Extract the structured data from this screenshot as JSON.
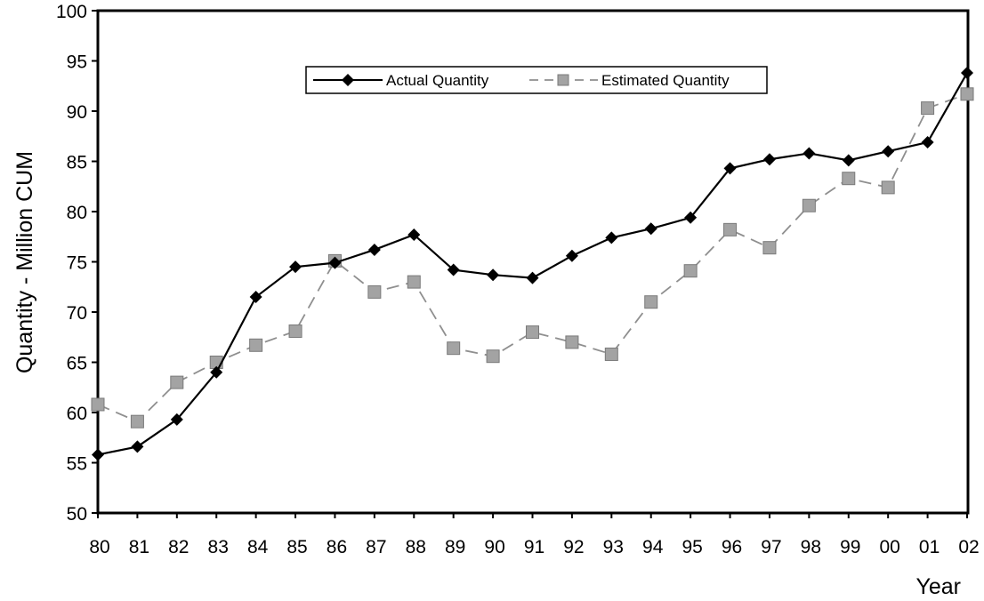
{
  "chart_data": {
    "type": "line",
    "title": "",
    "xlabel": "Year",
    "ylabel": "Quantity - Million CUM",
    "categories": [
      "80",
      "81",
      "82",
      "83",
      "84",
      "85",
      "86",
      "87",
      "88",
      "89",
      "90",
      "91",
      "92",
      "93",
      "94",
      "95",
      "96",
      "97",
      "98",
      "99",
      "00",
      "01",
      "02"
    ],
    "ylim": [
      50,
      100
    ],
    "yticks": [
      50,
      55,
      60,
      65,
      70,
      75,
      80,
      85,
      90,
      95,
      100
    ],
    "grid": false,
    "legend_position": "top-center",
    "series": [
      {
        "name": "Actual Quantity",
        "marker": "diamond",
        "line_style": "solid",
        "color": "#000000",
        "values": [
          55.8,
          56.6,
          59.3,
          64.0,
          71.5,
          74.5,
          74.9,
          76.2,
          77.7,
          74.2,
          73.7,
          73.4,
          75.6,
          77.4,
          78.3,
          79.4,
          84.3,
          85.2,
          85.8,
          85.1,
          86.0,
          86.9,
          93.8
        ]
      },
      {
        "name": "Estimated Quantity",
        "marker": "square",
        "line_style": "dashed",
        "color": "#8f8f8f",
        "values": [
          60.8,
          59.1,
          63.0,
          65.0,
          66.7,
          68.1,
          75.1,
          72.0,
          73.0,
          66.4,
          65.6,
          68.0,
          67.0,
          65.8,
          71.0,
          74.1,
          78.2,
          76.4,
          80.6,
          83.3,
          82.4,
          90.3,
          91.7
        ]
      }
    ]
  }
}
